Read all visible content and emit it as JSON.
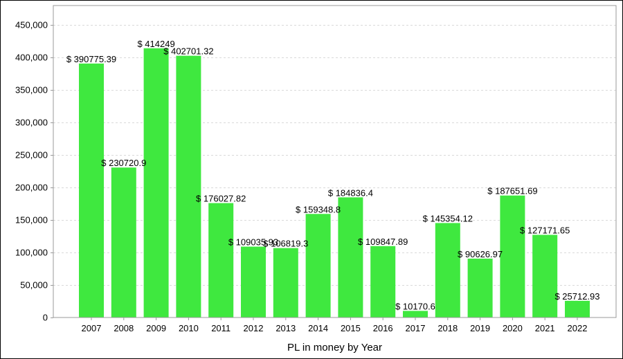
{
  "chart_data": {
    "type": "bar",
    "title": "",
    "xlabel": "PL in money by Year",
    "ylabel": "",
    "categories": [
      "2007",
      "2008",
      "2009",
      "2010",
      "2011",
      "2012",
      "2013",
      "2014",
      "2015",
      "2016",
      "2017",
      "2018",
      "2019",
      "2020",
      "2021",
      "2022"
    ],
    "values": [
      390775.39,
      230720.9,
      414249,
      402701.32,
      176027.82,
      109035.93,
      106819.3,
      159348.8,
      184836.4,
      109847.89,
      10170.6,
      145354.12,
      90626.97,
      187651.69,
      127171.65,
      25712.93
    ],
    "data_labels": [
      "$ 390775.39",
      "$ 230720.9",
      "$ 414249",
      "$ 402701.32",
      "$ 176027.82",
      "$ 109035.93",
      "$ 106819.3",
      "$ 159348.8",
      "$ 184836.4",
      "$ 109847.89",
      "$ 10170.6",
      "$ 145354.12",
      "$ 90626.97",
      "$ 187651.69",
      "$ 127171.65",
      "$ 25712.93"
    ],
    "ylim": [
      0,
      480000
    ],
    "yticks": [
      0,
      50000,
      100000,
      150000,
      200000,
      250000,
      300000,
      350000,
      400000,
      450000
    ],
    "ytick_labels": [
      "0",
      "50,000",
      "100,000",
      "150,000",
      "200,000",
      "250,000",
      "300,000",
      "350,000",
      "400,000",
      "450,000"
    ],
    "grid": true,
    "legend": "none",
    "bar_color": "#3fe83f",
    "grid_color": "#d9d9d9",
    "axis_color": "#999999"
  }
}
